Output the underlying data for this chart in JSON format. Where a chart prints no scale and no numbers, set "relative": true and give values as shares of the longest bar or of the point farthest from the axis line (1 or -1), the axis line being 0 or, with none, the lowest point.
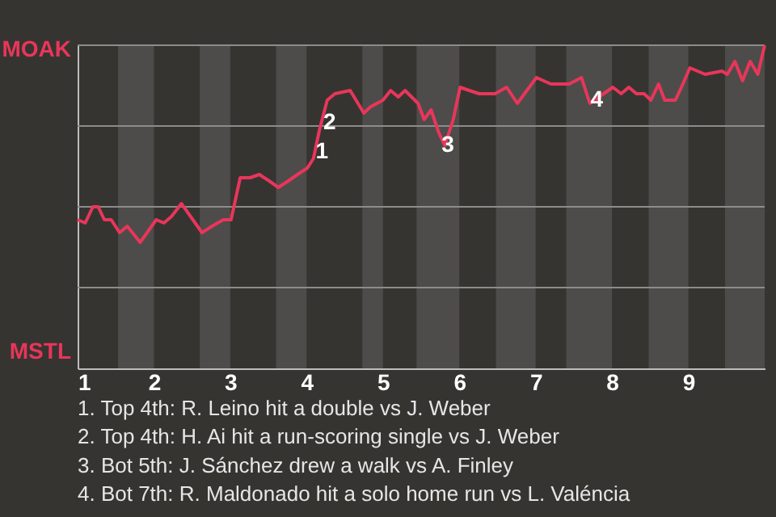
{
  "chart_data": {
    "type": "line",
    "relative": true,
    "x": [
      1.0,
      1.1,
      1.2,
      1.27,
      1.35,
      1.44,
      1.55,
      1.65,
      1.82,
      2.03,
      2.13,
      2.23,
      2.36,
      2.63,
      2.76,
      2.91,
      3.01,
      3.13,
      3.26,
      3.38,
      3.51,
      3.63,
      3.76,
      3.88,
      4.01,
      4.09,
      4.17,
      4.27,
      4.37,
      4.57,
      4.75,
      4.84,
      5.0,
      5.1,
      5.2,
      5.29,
      5.46,
      5.54,
      5.63,
      5.73,
      5.81,
      5.92,
      6.01,
      6.13,
      6.26,
      6.47,
      6.62,
      6.76,
      7.01,
      7.2,
      7.44,
      7.6,
      7.71,
      8.01,
      8.12,
      8.22,
      8.32,
      8.42,
      8.51,
      8.61,
      8.69,
      8.83,
      8.91,
      9.02,
      9.22,
      9.44,
      9.51,
      9.61,
      9.71,
      9.81,
      9.91,
      10.0
    ],
    "series": [
      {
        "color": "#e8365a",
        "values": [
          0.46,
          0.45,
          0.5,
          0.5,
          0.46,
          0.46,
          0.42,
          0.44,
          0.39,
          0.46,
          0.45,
          0.47,
          0.51,
          0.42,
          0.44,
          0.46,
          0.46,
          0.59,
          0.59,
          0.6,
          0.58,
          0.56,
          0.58,
          0.6,
          0.62,
          0.65,
          0.74,
          0.83,
          0.85,
          0.86,
          0.79,
          0.81,
          0.83,
          0.86,
          0.84,
          0.86,
          0.82,
          0.77,
          0.8,
          0.73,
          0.69,
          0.77,
          0.87,
          0.86,
          0.85,
          0.85,
          0.87,
          0.82,
          0.9,
          0.88,
          0.88,
          0.9,
          0.82,
          0.87,
          0.85,
          0.87,
          0.85,
          0.85,
          0.83,
          0.88,
          0.83,
          0.83,
          0.87,
          0.93,
          0.91,
          0.92,
          0.91,
          0.95,
          0.89,
          0.95,
          0.91,
          1.0
        ]
      }
    ],
    "xlim": [
      1,
      10
    ],
    "xticks": [
      1,
      2,
      3,
      4,
      5,
      6,
      7,
      8,
      9
    ],
    "marker": "none",
    "line_style": "solid",
    "ref_lines": [
      {
        "axis": "y",
        "value": 0.25,
        "color": "#8c8c8a"
      },
      {
        "axis": "y",
        "value": 0.5,
        "color": "#8c8c8a"
      },
      {
        "axis": "y",
        "value": 0.75,
        "color": "#8c8c8a"
      },
      {
        "axis": "y",
        "value": 1,
        "color": "#8c8c8a"
      }
    ],
    "bands": [
      {
        "axis": "x",
        "from": 1.53,
        "to": 2,
        "color": "#4d4c4a"
      },
      {
        "axis": "x",
        "from": 2.6,
        "to": 3,
        "color": "#4d4c4a"
      },
      {
        "axis": "x",
        "from": 3.6,
        "to": 4,
        "color": "#4d4c4a"
      },
      {
        "axis": "x",
        "from": 4.73,
        "to": 5,
        "color": "#4d4c4a"
      },
      {
        "axis": "x",
        "from": 5.44,
        "to": 6,
        "color": "#4d4c4a"
      },
      {
        "axis": "x",
        "from": 6.48,
        "to": 7,
        "color": "#4d4c4a"
      },
      {
        "axis": "x",
        "from": 7.4,
        "to": 8,
        "color": "#4d4c4a"
      },
      {
        "axis": "x",
        "from": 8.48,
        "to": 9,
        "color": "#4d4c4a"
      },
      {
        "axis": "x",
        "from": 9.48,
        "to": 10,
        "color": "#4d4c4a"
      }
    ],
    "annotations": [
      "MOAK",
      "MSTL",
      {
        "text": "1",
        "x": 4.2,
        "y": 0.67
      },
      {
        "text": "2",
        "x": 4.3,
        "y": 0.76
      },
      {
        "text": "3",
        "x": 5.85,
        "y": 0.69
      },
      {
        "text": "4",
        "x": 7.8,
        "y": 0.83
      },
      "1. Top 4th: R. Leino hit a double vs J. Weber",
      "2. Top 4th: H. Ai hit a run-scoring single vs J. Weber",
      "3. Bot 5th: J. Sánchez drew a walk vs A. Finley",
      "4. Bot 7th: R. Maldonado hit a solo home run vs L. Valéncia"
    ]
  }
}
